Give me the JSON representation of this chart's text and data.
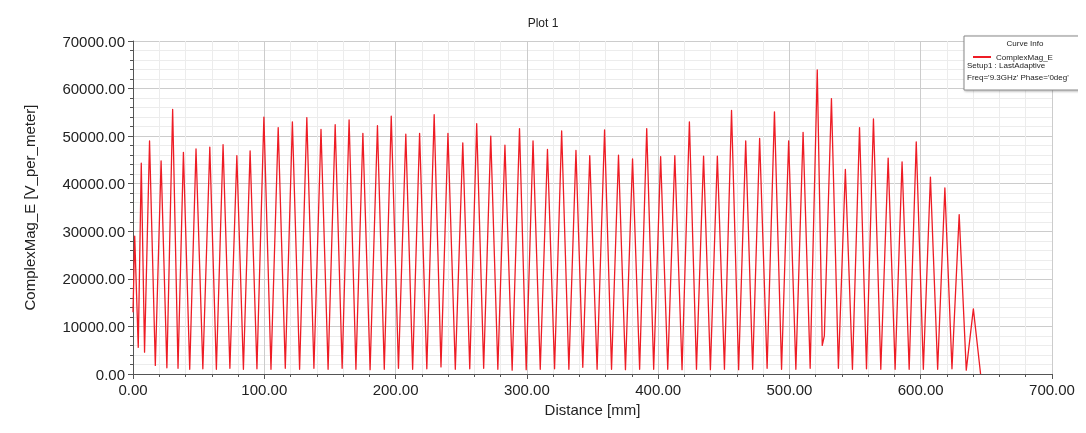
{
  "chart_data": {
    "type": "line",
    "title": "Plot 1",
    "xlabel": "Distance [mm]",
    "ylabel": "ComplexMag_E [V_per_meter]",
    "legend_title": "Curve Info",
    "legend": "top right",
    "grid": true,
    "marker": "none",
    "line_style": "solid",
    "annotations": [
      "Setup1 : LastAdaptive",
      "Freq='9.3GHz' Phase='0deg'"
    ],
    "xlim": [
      0,
      700
    ],
    "xticks": [
      {
        "value": 0,
        "label": "0.00"
      },
      {
        "value": 100,
        "label": "100.00"
      },
      {
        "value": 200,
        "label": "200.00"
      },
      {
        "value": 300,
        "label": "300.00"
      },
      {
        "value": 400,
        "label": "400.00"
      },
      {
        "value": 500,
        "label": "500.00"
      },
      {
        "value": 600,
        "label": "600.00"
      },
      {
        "value": 700,
        "label": "700.00"
      }
    ],
    "ylim": [
      0,
      70000
    ],
    "yticks": [
      {
        "value": 0,
        "label": "0.00"
      },
      {
        "value": 10000,
        "label": "10000.00"
      },
      {
        "value": 20000,
        "label": "20000.00"
      },
      {
        "value": 30000,
        "label": "30000.00"
      },
      {
        "value": 40000,
        "label": "40000.00"
      },
      {
        "value": 50000,
        "label": "50000.00"
      },
      {
        "value": 60000,
        "label": "60000.00"
      },
      {
        "value": 70000,
        "label": "70000.00"
      }
    ],
    "series": [
      {
        "name": "ComplexMag_E",
        "color": "#ee1c25",
        "x": [
          0,
          1.3,
          4.0,
          6.3,
          8.8,
          12.6,
          17.0,
          21.4,
          25.8,
          30.2,
          34.3,
          38.4,
          43.2,
          48,
          53.2,
          58.5,
          63.5,
          68.6,
          73.8,
          79.1,
          84.1,
          89.2,
          94.4,
          99.7,
          105.1,
          110.6,
          116.0,
          121.4,
          126.9,
          132.4,
          137.8,
          143.2,
          148.6,
          154,
          159.3,
          164.6,
          169.8,
          175.1,
          180.6,
          186.2,
          191.4,
          196.7,
          202.2,
          207.8,
          213.0,
          218.3,
          223.8,
          229.4,
          234.6,
          239.9,
          245.5,
          251.2,
          256.5,
          261.8,
          267.1,
          272.5,
          277.9,
          283.3,
          288.8,
          294.4,
          299.5,
          304.7,
          310.2,
          315.7,
          321.1,
          326.5,
          332.0,
          337.4,
          342.6,
          347.9,
          353.5,
          359.2,
          364.5,
          369.8,
          375.1,
          380.5,
          385.9,
          391.3,
          396.6,
          401.9,
          407.3,
          412.7,
          418.2,
          423.8,
          429.2,
          434.6,
          439.8,
          445.1,
          450.5,
          455.9,
          461.3,
          466.7,
          472.0,
          477.3,
          483.0,
          488.6,
          494.0,
          499.4,
          504.9,
          510.4,
          515.8,
          521.2,
          525.0,
          526.6,
          532.0,
          537.3,
          542.6,
          548.0,
          553.4,
          558.7,
          564.0,
          569.6,
          575.2,
          580.5,
          585.8,
          591.2,
          596.6,
          602.0,
          607.4,
          612.9,
          618.4,
          623.8,
          629.3,
          634.7,
          640.1,
          645.6
        ],
        "values": [
          13000,
          29000,
          5600,
          44300,
          4600,
          49000,
          1800,
          44800,
          1300,
          55600,
          1200,
          46600,
          1000,
          47300,
          1100,
          47700,
          1000,
          48200,
          1200,
          45900,
          1000,
          46900,
          1100,
          54000,
          1000,
          51800,
          1200,
          53000,
          1000,
          53900,
          1200,
          51400,
          1000,
          52400,
          1200,
          53400,
          1000,
          50600,
          900,
          52200,
          1000,
          54200,
          1200,
          50400,
          1000,
          50600,
          1100,
          54500,
          1500,
          50600,
          1000,
          48600,
          1100,
          52600,
          1200,
          50000,
          1000,
          48100,
          800,
          51600,
          900,
          49000,
          1000,
          47200,
          1100,
          51100,
          1000,
          47000,
          1400,
          45900,
          1000,
          51300,
          1000,
          46000,
          900,
          45200,
          1000,
          51600,
          1000,
          45700,
          1000,
          45900,
          900,
          53000,
          1000,
          45800,
          900,
          45800,
          1000,
          55400,
          900,
          49000,
          1000,
          49500,
          1200,
          55100,
          1000,
          49000,
          1000,
          50800,
          1200,
          63900,
          6000,
          8000,
          57900,
          1200,
          43000,
          1000,
          51800,
          1100,
          53600,
          1000,
          45400,
          1000,
          44600,
          1000,
          48800,
          1000,
          41400,
          1000,
          39100,
          1100,
          33500,
          800,
          13700,
          0
        ]
      }
    ]
  }
}
